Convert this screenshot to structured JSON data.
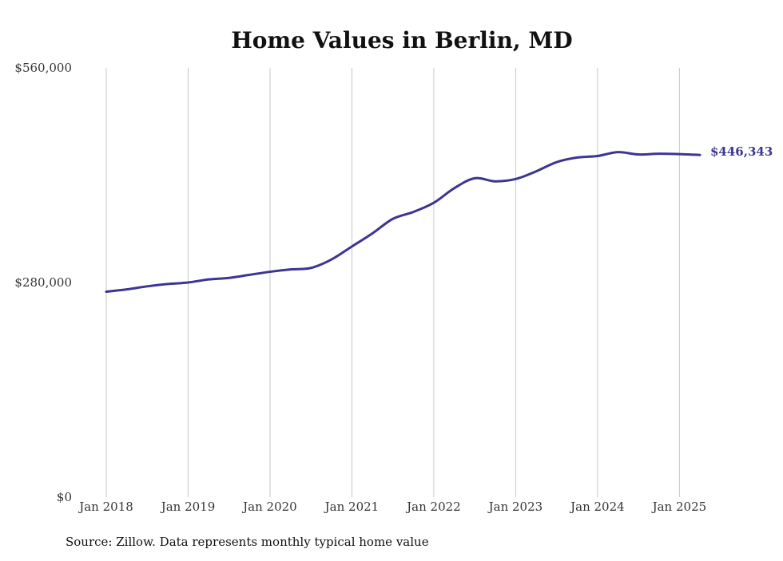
{
  "chart_data": {
    "type": "line",
    "title": "Home Values in Berlin, MD",
    "xlabel": "",
    "ylabel": "",
    "ylim": [
      0,
      560000
    ],
    "xlim": [
      "2018-01",
      "2025-04"
    ],
    "y_ticks": [
      {
        "value": 0,
        "label": "$0"
      },
      {
        "value": 280000,
        "label": "$280,000"
      },
      {
        "value": 560000,
        "label": "$560,000"
      }
    ],
    "x_ticks": [
      {
        "date": "2018-01",
        "label": "Jan 2018"
      },
      {
        "date": "2019-01",
        "label": "Jan 2019"
      },
      {
        "date": "2020-01",
        "label": "Jan 2020"
      },
      {
        "date": "2021-01",
        "label": "Jan 2021"
      },
      {
        "date": "2022-01",
        "label": "Jan 2022"
      },
      {
        "date": "2023-01",
        "label": "Jan 2023"
      },
      {
        "date": "2024-01",
        "label": "Jan 2024"
      },
      {
        "date": "2025-01",
        "label": "Jan 2025"
      }
    ],
    "grid": "vertical",
    "line_color": "#3d3592",
    "series": [
      {
        "values": [
          {
            "x": "2018-01",
            "y": 268000
          },
          {
            "x": "2018-04",
            "y": 271000
          },
          {
            "x": "2018-07",
            "y": 275000
          },
          {
            "x": "2018-10",
            "y": 278000
          },
          {
            "x": "2019-01",
            "y": 280000
          },
          {
            "x": "2019-04",
            "y": 284000
          },
          {
            "x": "2019-07",
            "y": 286000
          },
          {
            "x": "2019-10",
            "y": 290000
          },
          {
            "x": "2020-01",
            "y": 294000
          },
          {
            "x": "2020-04",
            "y": 297000
          },
          {
            "x": "2020-07",
            "y": 299000
          },
          {
            "x": "2020-10",
            "y": 310000
          },
          {
            "x": "2021-01",
            "y": 327000
          },
          {
            "x": "2021-04",
            "y": 344000
          },
          {
            "x": "2021-07",
            "y": 363000
          },
          {
            "x": "2021-10",
            "y": 372000
          },
          {
            "x": "2022-01",
            "y": 384000
          },
          {
            "x": "2022-04",
            "y": 403000
          },
          {
            "x": "2022-07",
            "y": 416000
          },
          {
            "x": "2022-10",
            "y": 412000
          },
          {
            "x": "2023-01",
            "y": 415000
          },
          {
            "x": "2023-04",
            "y": 425000
          },
          {
            "x": "2023-07",
            "y": 437000
          },
          {
            "x": "2023-10",
            "y": 443000
          },
          {
            "x": "2024-01",
            "y": 445000
          },
          {
            "x": "2024-04",
            "y": 450000
          },
          {
            "x": "2024-07",
            "y": 447000
          },
          {
            "x": "2024-10",
            "y": 448000
          },
          {
            "x": "2025-01",
            "y": 447500
          },
          {
            "x": "2025-04",
            "y": 446343
          }
        ]
      }
    ],
    "end_label": "$446,343"
  },
  "footer": {
    "source": "Source: Zillow. Data represents monthly typical home value"
  }
}
